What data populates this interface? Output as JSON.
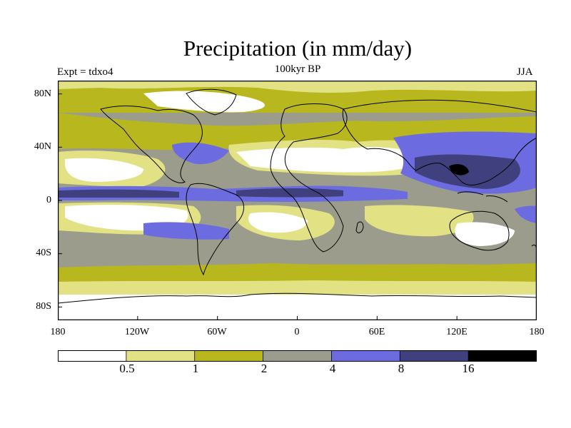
{
  "title": "Precipitation (in mm/day)",
  "subtitle": "100kyr BP",
  "experiment_label": "Expt = tdxo4",
  "season": "JJA",
  "map": {
    "projection": "equirectangular",
    "lon_range": [
      -180,
      180
    ],
    "lat_range": [
      -90,
      90
    ],
    "lat_ticks": [
      {
        "lat": 80,
        "label": "80N"
      },
      {
        "lat": 40,
        "label": "40N"
      },
      {
        "lat": 0,
        "label": "0"
      },
      {
        "lat": -40,
        "label": "40S"
      },
      {
        "lat": -80,
        "label": "80S"
      }
    ],
    "lon_ticks": [
      {
        "lon": -180,
        "label": "180"
      },
      {
        "lon": -120,
        "label": "120W"
      },
      {
        "lon": -60,
        "label": "60W"
      },
      {
        "lon": 0,
        "label": "0"
      },
      {
        "lon": 60,
        "label": "60E"
      },
      {
        "lon": 120,
        "label": "120E"
      },
      {
        "lon": 180,
        "label": "180"
      }
    ]
  },
  "colorbar": {
    "units": "mm/day",
    "levels": [
      "0.5",
      "1",
      "2",
      "4",
      "8",
      "16"
    ],
    "colors": [
      "#ffffff",
      "#e2e284",
      "#b8b81e",
      "#9c9c8c",
      "#6c6ce0",
      "#40407e",
      "#000000"
    ]
  }
}
